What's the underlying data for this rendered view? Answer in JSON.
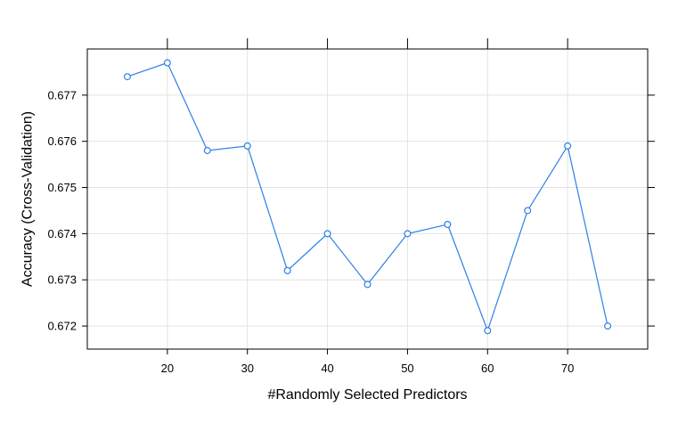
{
  "chart_data": {
    "type": "line",
    "title": "",
    "xlabel": "#Randomly Selected Predictors",
    "ylabel": "Accuracy (Cross-Validation)",
    "xlim": [
      10,
      80
    ],
    "ylim": [
      0.6715,
      0.678
    ],
    "grid": true,
    "x_ticks": [
      20,
      30,
      40,
      50,
      60,
      70
    ],
    "y_ticks": [
      0.672,
      0.673,
      0.674,
      0.675,
      0.676,
      0.677
    ],
    "x_tick_labels": [
      "20",
      "30",
      "40",
      "50",
      "60",
      "70"
    ],
    "y_tick_labels": [
      "0.672",
      "0.673",
      "0.674",
      "0.675",
      "0.676",
      "0.677"
    ],
    "series_color": "#2d7fe8",
    "x": [
      15,
      20,
      25,
      30,
      35,
      40,
      45,
      50,
      55,
      60,
      65,
      70,
      75
    ],
    "y": [
      0.6774,
      0.6777,
      0.6758,
      0.6759,
      0.6732,
      0.674,
      0.6729,
      0.674,
      0.6742,
      0.6719,
      0.6745,
      0.6759,
      0.672
    ]
  }
}
